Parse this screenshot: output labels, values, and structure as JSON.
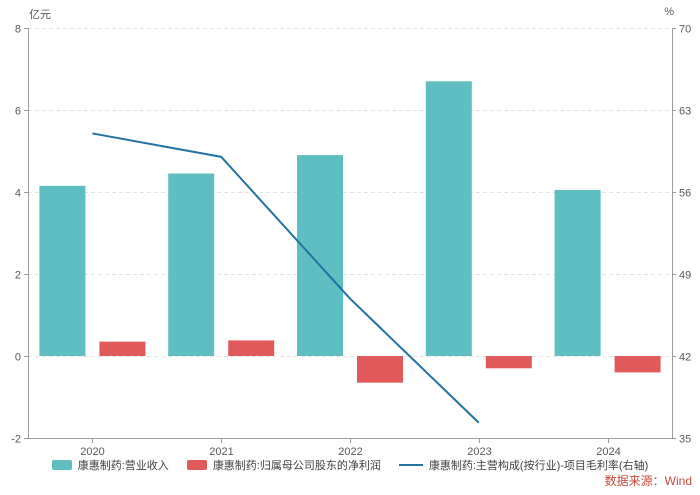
{
  "source_note": "数据来源：Wind",
  "source_note_color": "#c3493f",
  "chart_data": {
    "type": "bar+line combo",
    "categories": [
      "2020",
      "2021",
      "2022",
      "2023",
      "2024"
    ],
    "series": [
      {
        "name": "康惠制药:营业收入",
        "type": "bar",
        "axis": "left",
        "color": "#5fbec1",
        "values": [
          4.15,
          4.45,
          4.9,
          6.7,
          4.05
        ]
      },
      {
        "name": "康惠制药:归属母公司股东的净利润",
        "type": "bar",
        "axis": "left",
        "color": "#e0595b",
        "values": [
          0.35,
          0.38,
          -0.65,
          -0.3,
          -0.4
        ]
      },
      {
        "name": "康惠制药:主营构成(按行业)-项目毛利率(右轴)",
        "type": "line",
        "axis": "right",
        "color": "#2272a3",
        "values": [
          61.0,
          59.0,
          46.9,
          36.3,
          null
        ]
      }
    ],
    "left_axis": {
      "label": "亿元",
      "min": -2,
      "max": 8,
      "ticks": [
        8,
        6,
        4,
        2,
        0,
        -2
      ]
    },
    "right_axis": {
      "label": "%",
      "min": 35,
      "max": 70,
      "ticks": [
        70,
        63,
        56,
        49,
        42,
        35
      ]
    },
    "grid": "horizontal dashed",
    "legend_position": "bottom",
    "colors": {
      "gridline": "#e3e3e3",
      "axis_line": "#9b9b9b",
      "tick_label": "#595959"
    }
  }
}
